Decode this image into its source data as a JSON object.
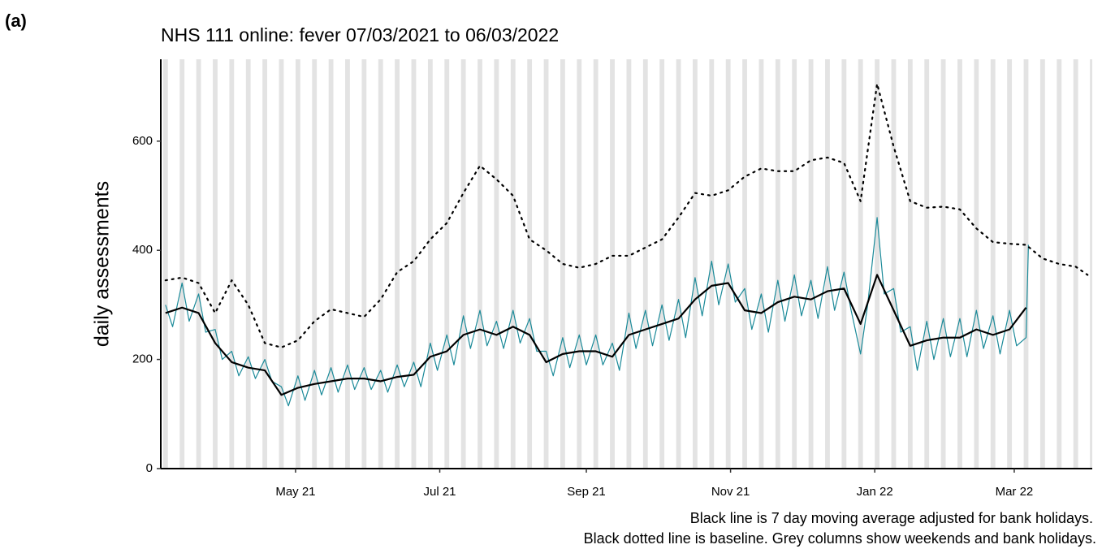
{
  "chart_data": {
    "type": "line",
    "panel_label": "(a)",
    "title": "NHS 111 online: fever 07/03/2021 to 06/03/2022",
    "y_label": "daily assessments",
    "caption": [
      "Black line is 7 day moving average adjusted for bank holidays.",
      "Black dotted line is baseline. Grey columns show weekends and bank holidays."
    ],
    "xlim": [
      "2021-03-05",
      "2022-04-03"
    ],
    "xticks": [
      {
        "value": "2021-05-01",
        "label": "May 21"
      },
      {
        "value": "2021-07-01",
        "label": "Jul 21"
      },
      {
        "value": "2021-09-01",
        "label": "Sep 21"
      },
      {
        "value": "2021-11-01",
        "label": "Nov 21"
      },
      {
        "value": "2022-01-01",
        "label": "Jan 22"
      },
      {
        "value": "2022-03-01",
        "label": "Mar 22"
      }
    ],
    "ylim": [
      0,
      750
    ],
    "yticks": [
      0,
      200,
      400,
      600
    ],
    "grid": false,
    "weekend_columns": true,
    "weekend_color": "#e3e3e3",
    "series": [
      {
        "color": "#1b8a99",
        "style": "solid",
        "width": 1.2,
        "x": [
          "2021-03-07",
          "2021-03-10",
          "2021-03-14",
          "2021-03-17",
          "2021-03-21",
          "2021-03-24",
          "2021-03-28",
          "2021-03-31",
          "2021-04-04",
          "2021-04-07",
          "2021-04-11",
          "2021-04-14",
          "2021-04-18",
          "2021-04-21",
          "2021-04-25",
          "2021-04-28",
          "2021-05-02",
          "2021-05-05",
          "2021-05-09",
          "2021-05-12",
          "2021-05-16",
          "2021-05-19",
          "2021-05-23",
          "2021-05-26",
          "2021-05-30",
          "2021-06-02",
          "2021-06-06",
          "2021-06-09",
          "2021-06-13",
          "2021-06-16",
          "2021-06-20",
          "2021-06-23",
          "2021-06-27",
          "2021-06-30",
          "2021-07-04",
          "2021-07-07",
          "2021-07-11",
          "2021-07-14",
          "2021-07-18",
          "2021-07-21",
          "2021-07-25",
          "2021-07-28",
          "2021-08-01",
          "2021-08-04",
          "2021-08-08",
          "2021-08-11",
          "2021-08-15",
          "2021-08-18",
          "2021-08-22",
          "2021-08-25",
          "2021-08-29",
          "2021-09-01",
          "2021-09-05",
          "2021-09-08",
          "2021-09-12",
          "2021-09-15",
          "2021-09-19",
          "2021-09-22",
          "2021-09-26",
          "2021-09-29",
          "2021-10-03",
          "2021-10-06",
          "2021-10-10",
          "2021-10-13",
          "2021-10-17",
          "2021-10-20",
          "2021-10-24",
          "2021-10-27",
          "2021-10-31",
          "2021-11-03",
          "2021-11-07",
          "2021-11-10",
          "2021-11-14",
          "2021-11-17",
          "2021-11-21",
          "2021-11-24",
          "2021-11-28",
          "2021-12-01",
          "2021-12-05",
          "2021-12-08",
          "2021-12-12",
          "2021-12-15",
          "2021-12-19",
          "2021-12-22",
          "2021-12-26",
          "2021-12-29",
          "2022-01-02",
          "2022-01-05",
          "2022-01-09",
          "2022-01-12",
          "2022-01-16",
          "2022-01-19",
          "2022-01-23",
          "2022-01-26",
          "2022-01-30",
          "2022-02-02",
          "2022-02-06",
          "2022-02-09",
          "2022-02-13",
          "2022-02-16",
          "2022-02-20",
          "2022-02-23",
          "2022-02-27",
          "2022-03-02",
          "2022-03-06",
          "2022-03-07"
        ],
        "values": [
          300,
          260,
          340,
          270,
          320,
          250,
          255,
          200,
          215,
          170,
          205,
          165,
          200,
          160,
          150,
          115,
          170,
          125,
          180,
          135,
          185,
          140,
          190,
          145,
          185,
          145,
          180,
          140,
          190,
          150,
          195,
          150,
          230,
          180,
          245,
          190,
          280,
          220,
          290,
          225,
          270,
          220,
          290,
          230,
          275,
          215,
          215,
          170,
          240,
          185,
          245,
          190,
          245,
          190,
          230,
          180,
          285,
          220,
          290,
          225,
          300,
          235,
          310,
          240,
          350,
          280,
          380,
          300,
          375,
          305,
          330,
          255,
          320,
          250,
          345,
          270,
          355,
          280,
          345,
          275,
          370,
          290,
          360,
          290,
          210,
          300,
          460,
          320,
          330,
          250,
          260,
          180,
          270,
          200,
          275,
          205,
          275,
          205,
          290,
          220,
          280,
          210,
          290,
          225,
          240,
          410
        ]
      },
      {
        "color": "#000000",
        "style": "solid",
        "width": 2.2,
        "x": [
          "2021-03-07",
          "2021-03-14",
          "2021-03-21",
          "2021-03-28",
          "2021-04-04",
          "2021-04-11",
          "2021-04-18",
          "2021-04-25",
          "2021-05-02",
          "2021-05-09",
          "2021-05-16",
          "2021-05-23",
          "2021-05-30",
          "2021-06-06",
          "2021-06-13",
          "2021-06-20",
          "2021-06-27",
          "2021-07-04",
          "2021-07-11",
          "2021-07-18",
          "2021-07-25",
          "2021-08-01",
          "2021-08-08",
          "2021-08-15",
          "2021-08-22",
          "2021-08-29",
          "2021-09-05",
          "2021-09-12",
          "2021-09-19",
          "2021-09-26",
          "2021-10-03",
          "2021-10-10",
          "2021-10-17",
          "2021-10-24",
          "2021-10-31",
          "2021-11-07",
          "2021-11-14",
          "2021-11-21",
          "2021-11-28",
          "2021-12-05",
          "2021-12-12",
          "2021-12-19",
          "2021-12-26",
          "2022-01-02",
          "2022-01-09",
          "2022-01-16",
          "2022-01-23",
          "2022-01-30",
          "2022-02-06",
          "2022-02-13",
          "2022-02-20",
          "2022-02-27",
          "2022-03-06"
        ],
        "values": [
          285,
          295,
          285,
          230,
          195,
          185,
          180,
          135,
          148,
          155,
          160,
          165,
          165,
          160,
          168,
          172,
          205,
          215,
          245,
          255,
          245,
          260,
          245,
          195,
          210,
          215,
          215,
          205,
          245,
          255,
          265,
          275,
          310,
          335,
          340,
          290,
          285,
          305,
          315,
          310,
          325,
          330,
          265,
          355,
          290,
          225,
          235,
          240,
          240,
          255,
          245,
          255,
          295
        ]
      },
      {
        "color": "#000000",
        "style": "dotted",
        "width": 2.2,
        "x": [
          "2021-03-07",
          "2021-03-14",
          "2021-03-21",
          "2021-03-28",
          "2021-04-04",
          "2021-04-11",
          "2021-04-18",
          "2021-04-25",
          "2021-05-02",
          "2021-05-09",
          "2021-05-16",
          "2021-05-23",
          "2021-05-30",
          "2021-06-06",
          "2021-06-13",
          "2021-06-20",
          "2021-06-27",
          "2021-07-04",
          "2021-07-11",
          "2021-07-18",
          "2021-07-25",
          "2021-08-01",
          "2021-08-08",
          "2021-08-15",
          "2021-08-22",
          "2021-08-29",
          "2021-09-05",
          "2021-09-12",
          "2021-09-19",
          "2021-09-26",
          "2021-10-03",
          "2021-10-10",
          "2021-10-17",
          "2021-10-24",
          "2021-10-31",
          "2021-11-07",
          "2021-11-14",
          "2021-11-21",
          "2021-11-28",
          "2021-12-05",
          "2021-12-12",
          "2021-12-19",
          "2021-12-26",
          "2022-01-02",
          "2022-01-09",
          "2022-01-16",
          "2022-01-23",
          "2022-01-30",
          "2022-02-06",
          "2022-02-13",
          "2022-02-20",
          "2022-02-27",
          "2022-03-06",
          "2022-03-13",
          "2022-03-20",
          "2022-03-27",
          "2022-04-01"
        ],
        "values": [
          345,
          350,
          340,
          285,
          345,
          300,
          230,
          222,
          235,
          270,
          292,
          285,
          278,
          310,
          360,
          380,
          420,
          450,
          505,
          555,
          530,
          500,
          420,
          400,
          375,
          368,
          375,
          390,
          390,
          405,
          420,
          460,
          505,
          500,
          510,
          535,
          550,
          545,
          545,
          565,
          570,
          560,
          490,
          705,
          590,
          490,
          478,
          480,
          475,
          440,
          415,
          412,
          410,
          385,
          375,
          370,
          355
        ]
      }
    ]
  }
}
